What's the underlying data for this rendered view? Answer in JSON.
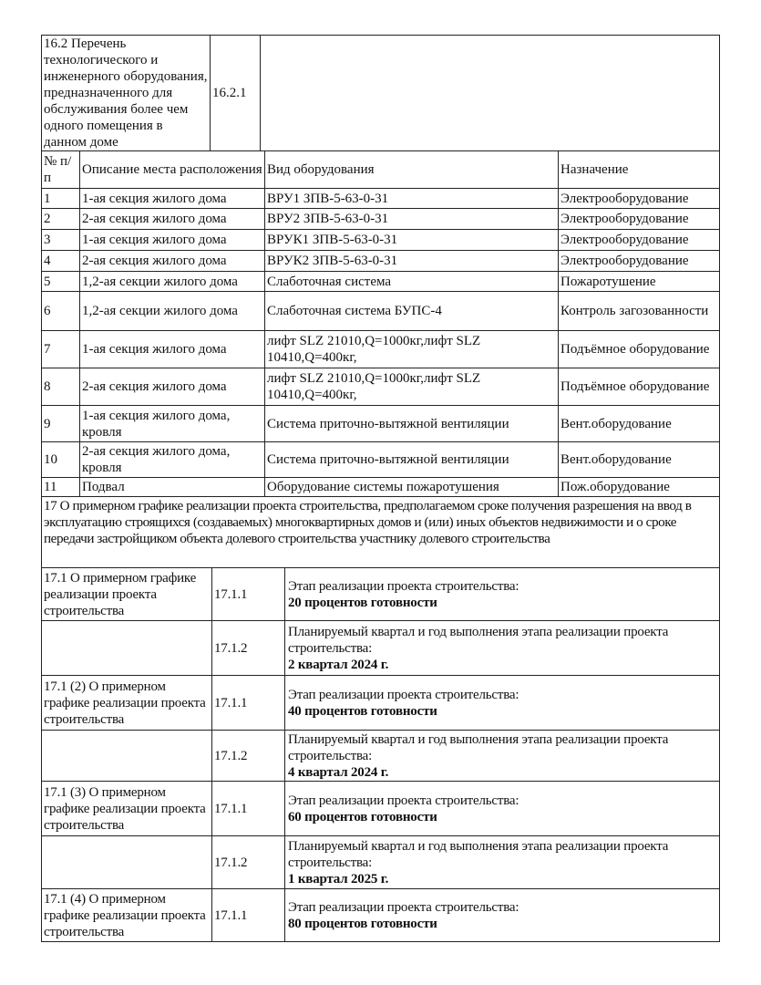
{
  "section16": {
    "title": "16.2 Перечень технологического и инженерного оборудования, предназначенного для обслуживания более чем одного помещения в данном доме",
    "code": "16.2.1",
    "value": ""
  },
  "equipment": {
    "headers": [
      "№ п/п",
      "Описание места расположения",
      "Вид оборудования",
      "Назначение"
    ],
    "rows": [
      [
        "1",
        "1-ая секция жилого дома",
        "ВРУ1 ЗПВ-5-63-0-31",
        "Электрооборудование"
      ],
      [
        "2",
        "2-ая секция жилого дома",
        "ВРУ2 ЗПВ-5-63-0-31",
        "Электрооборудование"
      ],
      [
        "3",
        "1-ая секция жилого дома",
        "ВРУК1 ЗПВ-5-63-0-31",
        "Электрооборудование"
      ],
      [
        "4",
        "2-ая секция жилого дома",
        "ВРУК2 ЗПВ-5-63-0-31",
        "Электрооборудование"
      ],
      [
        "5",
        "1,2-ая секции жилого дома",
        "Слаботочная система",
        "Пожаротушение"
      ],
      [
        "6",
        "1,2-ая секции жилого дома",
        "Слаботочная система БУПС-4",
        "Контроль загозованности"
      ],
      [
        "7",
        "1-ая секция жилого дома",
        "лифт SLZ 21010,Q=1000кг,лифт SLZ 10410,Q=400кг,",
        "Подъёмное оборудование"
      ],
      [
        "8",
        "2-ая секция жилого дома",
        "лифт SLZ 21010,Q=1000кг,лифт SLZ 10410,Q=400кг,",
        "Подъёмное оборудование"
      ],
      [
        "9",
        "1-ая секция жилого дома, кровля",
        "Система приточно-вытяжной вентиляции",
        "Вент.оборудование"
      ],
      [
        "10",
        "2-ая секция жилого дома, кровля",
        "Система приточно-вытяжной вентиляции",
        "Вент.оборудование"
      ],
      [
        "11",
        "Подвал",
        "Оборудование системы пожаротушения",
        "Пож.оборудование"
      ]
    ]
  },
  "section17": {
    "title": "17 О примерном графике реализации проекта строительства, предполагаемом сроке получения разрешения на ввод в эксплуатацию строящихся (создаваемых) многоквартирных домов и (или) иных объектов недвижимости и о сроке передачи застройщиком объекта долевого строительства участнику долевого строительства",
    "rows": [
      {
        "label": "17.1 О примерном графике реализации проекта строительства",
        "code": "17.1.1",
        "text": "Этап реализации проекта строительства:",
        "value": "20 процентов готовности"
      },
      {
        "label": "",
        "code": "17.1.2",
        "text": "Планируемый квартал и год выполнения этапа реализации проекта строительства:",
        "value": "2 квартал 2024 г."
      },
      {
        "label": "17.1 (2) О примерном графике реализации проекта строительства",
        "code": "17.1.1",
        "text": "Этап реализации проекта строительства:",
        "value": "40 процентов готовности"
      },
      {
        "label": "",
        "code": "17.1.2",
        "text": "Планируемый квартал и год выполнения этапа реализации проекта строительства:",
        "value": "4 квартал 2024 г."
      },
      {
        "label": "17.1 (3) О примерном графике реализации проекта строительства",
        "code": "17.1.1",
        "text": "Этап реализации проекта строительства:",
        "value": "60 процентов готовности"
      },
      {
        "label": "",
        "code": "17.1.2",
        "text": "Планируемый квартал и год выполнения этапа реализации проекта строительства:",
        "value": "1 квартал 2025 г."
      },
      {
        "label": "17.1 (4) О примерном графике реализации проекта строительства",
        "code": "17.1.1",
        "text": "Этап реализации проекта строительства:",
        "value": "80 процентов готовности"
      }
    ]
  }
}
